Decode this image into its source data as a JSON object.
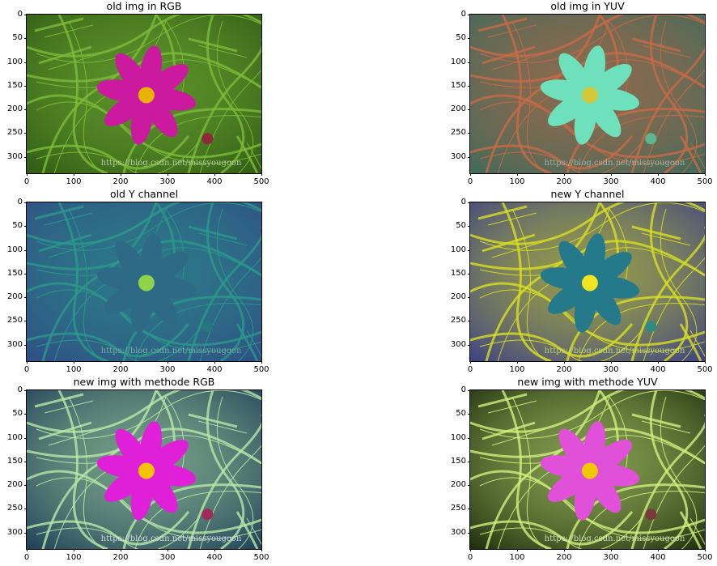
{
  "panels": [
    {
      "title": "old img in RGB",
      "style": "rgb"
    },
    {
      "title": "old img in YUV",
      "style": "yuv"
    },
    {
      "title": "old Y channel",
      "style": "yold"
    },
    {
      "title": "new Y channel",
      "style": "ynew"
    },
    {
      "title": "new img with methode RGB",
      "style": "newrgb"
    },
    {
      "title": "new img with methode YUV",
      "style": "newyuv"
    }
  ],
  "axes": {
    "x_ticks": [
      "0",
      "100",
      "200",
      "300",
      "400",
      "500"
    ],
    "y_ticks": [
      "0",
      "50",
      "100",
      "150",
      "200",
      "250",
      "300"
    ],
    "xlim": [
      0,
      500
    ],
    "ylim": [
      335,
      0
    ]
  },
  "watermark": "https://blog.csdn.net/missyougoon",
  "colors": {
    "rgb": {
      "bg": "#2f5a14",
      "leaf": "#7dbb3a",
      "petal": "#cc1aa0",
      "center": "#e8b400",
      "bud": "#8a2a3a",
      "wm": "#c9d8b6"
    },
    "yuv": {
      "bg": "#3e6a5a",
      "leaf": "#c86a46",
      "petal": "#6ee0bc",
      "center": "#d2c83a",
      "bud": "#5ab890",
      "wm": "#9fc0b6"
    },
    "yold": {
      "bg": "#2f4d85",
      "leaf": "#2a9a8a",
      "petal": "#2e6a86",
      "center": "#8fd34a",
      "bud": "#26767e",
      "wm": "#7fb8a8"
    },
    "ynew": {
      "bg": "#3b3f86",
      "leaf": "#d8e020",
      "petal": "#247a8a",
      "center": "#f0e520",
      "bud": "#2f8a84",
      "wm": "#c8e07a"
    },
    "newrgb": {
      "bg": "#1c3d58",
      "leaf": "#b8e8a8",
      "petal": "#e020d8",
      "center": "#f0c400",
      "bud": "#a02a5a",
      "wm": "#dfe8f0"
    },
    "newyuv": {
      "bg": "#1a2a0a",
      "leaf": "#d0f080",
      "petal": "#e050d8",
      "center": "#f0c800",
      "bud": "#7a3a3a",
      "wm": "#e0eec0"
    }
  }
}
